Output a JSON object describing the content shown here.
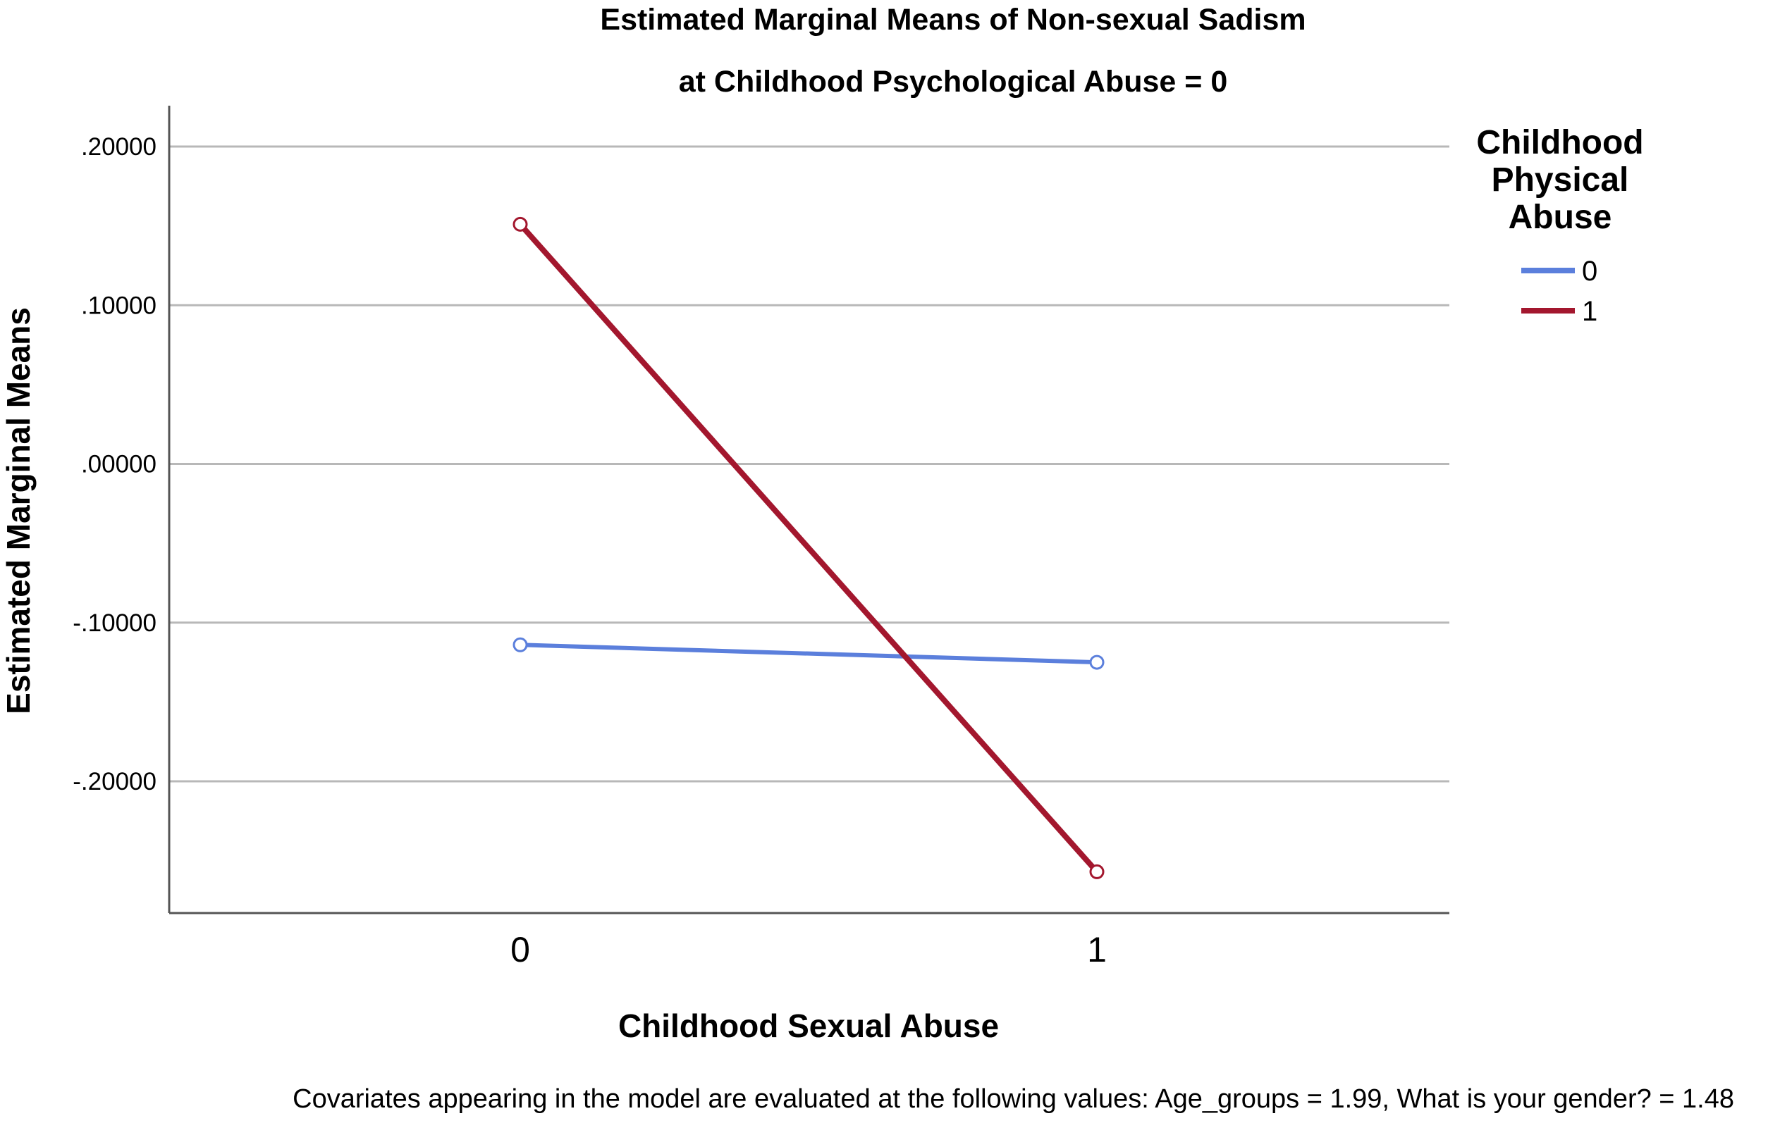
{
  "chart_data": {
    "type": "line",
    "title": "Estimated Marginal Means of Non-sexual Sadism",
    "subtitle": "at Childhood Psychological Abuse = 0",
    "xlabel": "Childhood Sexual Abuse",
    "ylabel": "Estimated Marginal Means",
    "categories": [
      "0",
      "1"
    ],
    "ylim": [
      -0.28,
      0.225
    ],
    "yticks": [
      0.2,
      0.1,
      0.0,
      -0.1,
      -0.2
    ],
    "ytick_labels": [
      ".20000",
      ".10000",
      ".00000",
      "-.10000",
      "-.20000"
    ],
    "grid": true,
    "legend": {
      "title": "Childhood Physical Abuse",
      "title_lines": [
        "Childhood",
        "Physical",
        "Abuse"
      ],
      "placement": "right"
    },
    "series": [
      {
        "name": "0",
        "color": "#5b7fdc",
        "values": [
          -0.114,
          -0.125
        ]
      },
      {
        "name": "1",
        "color": "#a3172e",
        "values": [
          0.151,
          -0.257
        ]
      }
    ],
    "footnote": "Covariates appearing in the model are evaluated at the following values: Age_groups = 1.99, What is your gender? = 1.48"
  }
}
